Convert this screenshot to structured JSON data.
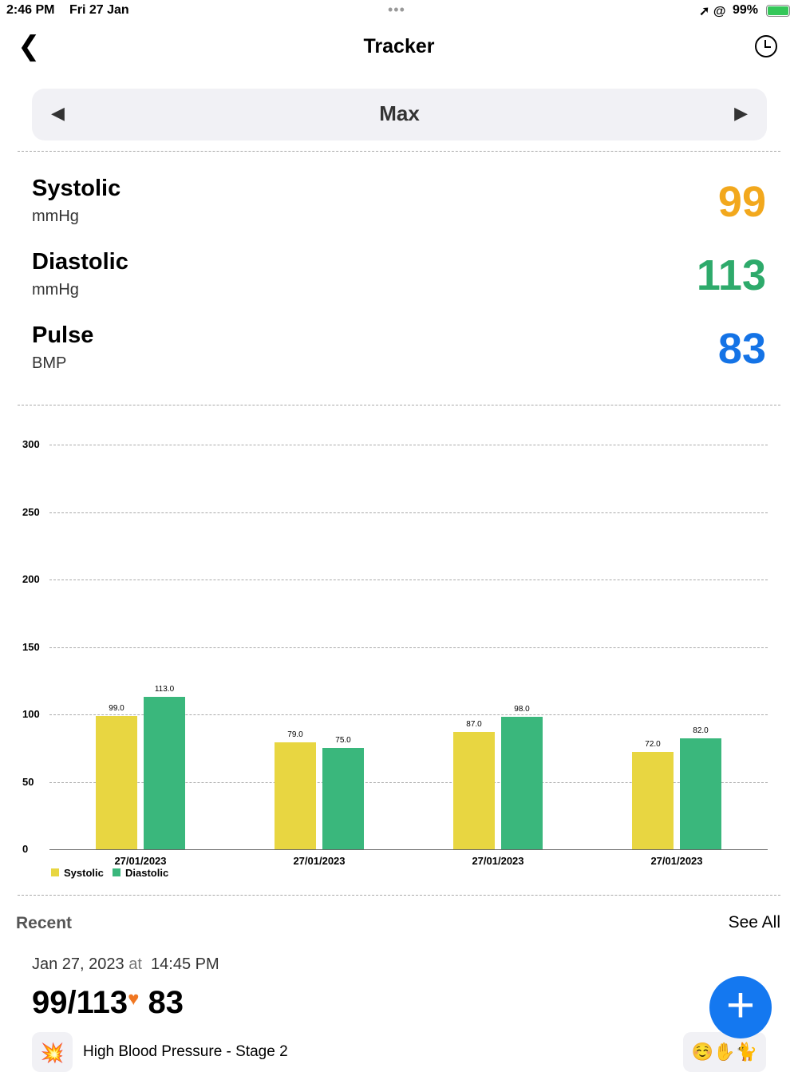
{
  "status": {
    "time": "2:46 PM",
    "date": "Fri 27 Jan",
    "battery": "99%"
  },
  "header": {
    "title": "Tracker"
  },
  "range": {
    "label": "Max"
  },
  "metrics": [
    {
      "label": "Systolic",
      "unit": "mmHg",
      "value": "99",
      "color": "#F2A81D"
    },
    {
      "label": "Diastolic",
      "unit": "mmHg",
      "value": "113",
      "color": "#2EAA6B"
    },
    {
      "label": "Pulse",
      "unit": "BMP",
      "value": "83",
      "color": "#1473E6"
    }
  ],
  "chart_data": {
    "type": "bar",
    "categories": [
      "27/01/2023",
      "27/01/2023",
      "27/01/2023",
      "27/01/2023"
    ],
    "series": [
      {
        "name": "Systolic",
        "color": "#E8D641",
        "values": [
          99,
          79,
          87,
          72
        ]
      },
      {
        "name": "Diastolic",
        "color": "#3AB77C",
        "values": [
          113,
          75,
          98,
          82
        ]
      }
    ],
    "yticks": [
      0,
      50,
      100,
      150,
      200,
      250,
      300
    ],
    "ylim": [
      0,
      300
    ],
    "legend": "bottom-left"
  },
  "recent": {
    "title": "Recent",
    "see_all": "See All",
    "date": "Jan 27, 2023",
    "at": "at",
    "time": "14:45 PM",
    "reading": "99/113",
    "pulse": "83",
    "category": "High Blood Pressure - Stage 2",
    "category_emoji": "💥",
    "tags": "☺️✋🐈"
  }
}
